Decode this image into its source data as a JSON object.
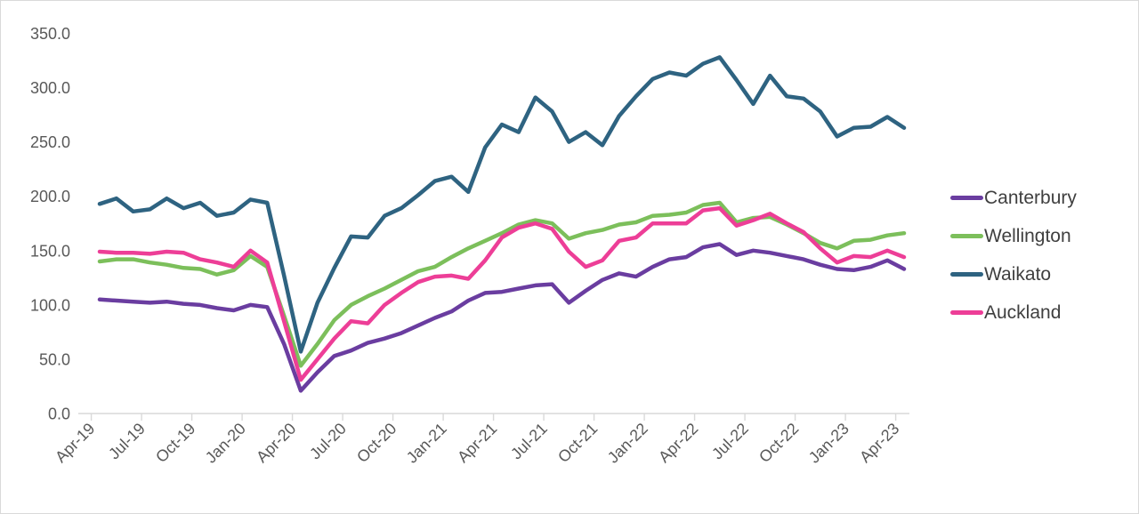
{
  "chart_data": {
    "type": "line",
    "title": "",
    "xlabel": "",
    "ylabel": "",
    "ylim": [
      0,
      350
    ],
    "y_tick_interval": 50,
    "y_tick_labels": [
      "0.0",
      "50.0",
      "100.0",
      "150.0",
      "200.0",
      "250.0",
      "300.0",
      "350.0"
    ],
    "x_tick_interval": 3,
    "visible_x_tick_labels": [
      "Apr-19",
      "Jul-19",
      "Oct-19",
      "Jan-20",
      "Apr-20",
      "Jul-20",
      "Oct-20",
      "Jan-21",
      "Apr-21",
      "Jul-21",
      "Oct-21",
      "Jan-22",
      "Apr-22",
      "Jul-22",
      "Oct-22",
      "Jan-23",
      "Apr-23"
    ],
    "x": [
      "Apr-19",
      "May-19",
      "Jun-19",
      "Jul-19",
      "Aug-19",
      "Sep-19",
      "Oct-19",
      "Nov-19",
      "Dec-19",
      "Jan-20",
      "Feb-20",
      "Mar-20",
      "Apr-20",
      "May-20",
      "Jun-20",
      "Jul-20",
      "Aug-20",
      "Sep-20",
      "Oct-20",
      "Nov-20",
      "Dec-20",
      "Jan-21",
      "Feb-21",
      "Mar-21",
      "Apr-21",
      "May-21",
      "Jun-21",
      "Jul-21",
      "Aug-21",
      "Sep-21",
      "Oct-21",
      "Nov-21",
      "Dec-21",
      "Jan-22",
      "Feb-22",
      "Mar-22",
      "Apr-22",
      "May-22",
      "Jun-22",
      "Jul-22",
      "Aug-22",
      "Sep-22",
      "Oct-22",
      "Nov-22",
      "Dec-22",
      "Jan-23",
      "Feb-23",
      "Mar-23",
      "Apr-23"
    ],
    "grid": false,
    "legend_position": "right",
    "axis_color": "#d9d9d9",
    "axis_text_color": "#595959",
    "legend_text_color": "#3f3f3f",
    "series": [
      {
        "name": "Canterbury",
        "color": "#6A3DA0",
        "values": [
          105,
          104,
          103,
          102,
          103,
          101,
          100,
          97,
          95,
          100,
          98,
          64,
          21,
          38,
          53,
          58,
          65,
          69,
          74,
          81,
          88,
          94,
          104,
          111,
          112,
          115,
          118,
          119,
          102,
          113,
          123,
          129,
          126,
          135,
          142,
          144,
          153,
          156,
          146,
          150,
          148,
          145,
          142,
          137,
          133,
          132,
          135,
          141,
          133
        ]
      },
      {
        "name": "Wellington",
        "color": "#7CBF5B",
        "values": [
          140,
          142,
          142,
          139,
          137,
          134,
          133,
          128,
          132,
          145,
          135,
          90,
          44,
          64,
          86,
          100,
          108,
          115,
          123,
          131,
          135,
          144,
          152,
          159,
          166,
          174,
          178,
          175,
          161,
          166,
          169,
          174,
          176,
          182,
          183,
          185,
          192,
          194,
          176,
          180,
          181,
          174,
          166,
          157,
          152,
          159,
          160,
          164,
          166
        ]
      },
      {
        "name": "Waikato",
        "color": "#2E6381",
        "values": [
          193,
          198,
          186,
          188,
          198,
          189,
          194,
          182,
          185,
          197,
          194,
          127,
          57,
          102,
          134,
          163,
          162,
          182,
          189,
          201,
          214,
          218,
          204,
          245,
          266,
          259,
          291,
          278,
          250,
          259,
          247,
          274,
          292,
          308,
          314,
          311,
          322,
          328,
          307,
          285,
          311,
          292,
          290,
          278,
          255,
          263,
          264,
          273,
          263
        ]
      },
      {
        "name": "Auckland",
        "color": "#ED3E97",
        "values": [
          149,
          148,
          148,
          147,
          149,
          148,
          142,
          139,
          135,
          150,
          139,
          85,
          31,
          50,
          69,
          85,
          83,
          100,
          111,
          121,
          126,
          127,
          124,
          141,
          162,
          171,
          175,
          170,
          149,
          135,
          141,
          159,
          162,
          175,
          175,
          175,
          187,
          189,
          173,
          178,
          184,
          175,
          167,
          152,
          139,
          145,
          144,
          150,
          144
        ]
      }
    ]
  }
}
